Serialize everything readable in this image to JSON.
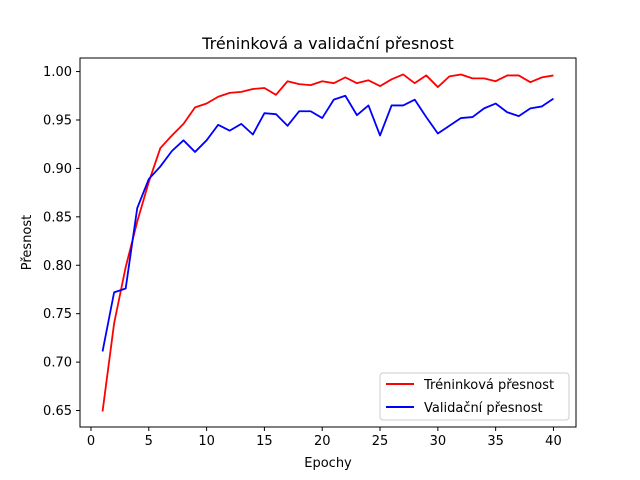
{
  "chart_data": {
    "type": "line",
    "title": "Tréninková a validační přesnost",
    "xlabel": "Epochy",
    "ylabel": "Přesnost",
    "xlim": [
      -0.95,
      41.95
    ],
    "ylim": [
      0.633,
      1.014
    ],
    "xticks": [
      0,
      5,
      10,
      15,
      20,
      25,
      30,
      35,
      40
    ],
    "yticks": [
      0.65,
      0.7,
      0.75,
      0.8,
      0.85,
      0.9,
      0.95,
      1.0
    ],
    "xtick_labels": [
      "0",
      "5",
      "10",
      "15",
      "20",
      "25",
      "30",
      "35",
      "40"
    ],
    "ytick_labels": [
      "0.65",
      "0.70",
      "0.75",
      "0.80",
      "0.85",
      "0.90",
      "0.95",
      "1.00"
    ],
    "grid": false,
    "legend_position": "lower-right",
    "x": [
      1,
      2,
      3,
      4,
      5,
      6,
      7,
      8,
      9,
      10,
      11,
      12,
      13,
      14,
      15,
      16,
      17,
      18,
      19,
      20,
      21,
      22,
      23,
      24,
      25,
      26,
      27,
      28,
      29,
      30,
      31,
      32,
      33,
      34,
      35,
      36,
      37,
      38,
      39,
      40
    ],
    "series": [
      {
        "name": "Tréninková přesnost",
        "color": "#ff0000",
        "values": [
          0.649,
          0.74,
          0.798,
          0.845,
          0.886,
          0.921,
          0.934,
          0.946,
          0.963,
          0.967,
          0.974,
          0.978,
          0.979,
          0.982,
          0.983,
          0.976,
          0.99,
          0.987,
          0.986,
          0.99,
          0.988,
          0.994,
          0.988,
          0.991,
          0.985,
          0.992,
          0.997,
          0.988,
          0.996,
          0.984,
          0.995,
          0.997,
          0.993,
          0.993,
          0.99,
          0.996,
          0.996,
          0.989,
          0.994,
          0.996
        ]
      },
      {
        "name": "Validační přesnost",
        "color": "#0000ff",
        "values": [
          0.711,
          0.772,
          0.776,
          0.859,
          0.889,
          0.902,
          0.918,
          0.929,
          0.917,
          0.929,
          0.945,
          0.939,
          0.946,
          0.935,
          0.957,
          0.956,
          0.944,
          0.959,
          0.959,
          0.952,
          0.971,
          0.975,
          0.955,
          0.965,
          0.934,
          0.965,
          0.965,
          0.971,
          0.953,
          0.936,
          0.944,
          0.952,
          0.953,
          0.962,
          0.967,
          0.958,
          0.954,
          0.962,
          0.964,
          0.972
        ]
      }
    ]
  }
}
